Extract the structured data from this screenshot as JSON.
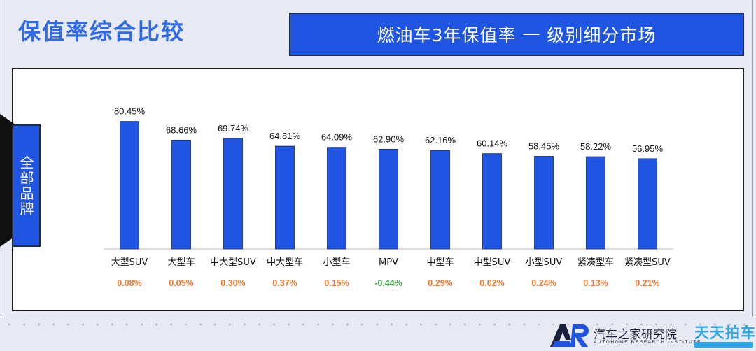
{
  "header": {
    "title": "保值率综合比较",
    "subtitle": "燃油车3年保值率 一 级别细分市场"
  },
  "side_tab": {
    "label": "全部品牌"
  },
  "chart_data": {
    "type": "bar",
    "title": "",
    "xlabel": "",
    "ylabel": "",
    "ylim": [
      0,
      90
    ],
    "grid": false,
    "bar_color": "#1f55e0",
    "categories": [
      "大型SUV",
      "大型车",
      "中大型SUV",
      "中大型车",
      "小型车",
      "MPV",
      "中型车",
      "中型SUV",
      "小型SUV",
      "紧凑型车",
      "紧凑型SUV"
    ],
    "values": [
      80.45,
      68.66,
      69.74,
      64.81,
      64.09,
      62.9,
      62.16,
      60.14,
      58.45,
      58.22,
      56.95
    ],
    "value_labels": [
      "80.45%",
      "68.66%",
      "69.74%",
      "64.81%",
      "64.09%",
      "62.90%",
      "62.16%",
      "60.14%",
      "58.45%",
      "58.22%",
      "56.95%"
    ],
    "changes": [
      0.08,
      0.05,
      0.3,
      0.37,
      0.15,
      -0.44,
      0.29,
      0.02,
      0.24,
      0.13,
      0.21
    ],
    "change_labels": [
      "0.08%",
      "0.05%",
      "0.30%",
      "0.37%",
      "0.15%",
      "-0.44%",
      "0.29%",
      "0.02%",
      "0.24%",
      "0.13%",
      "0.21%"
    ],
    "change_colors": {
      "positive": "#f07a30",
      "negative": "#48a84e"
    }
  },
  "footer": {
    "brand_cn": "汽车之家研究院",
    "brand_en": "AUTOHOME RESEARCH INSTITUTE",
    "brand_colors": {
      "dark": "#1a1f3b",
      "accent": "#1f55e0"
    },
    "partner_name": "天天拍车",
    "partner_color": "#2aa6e6"
  }
}
